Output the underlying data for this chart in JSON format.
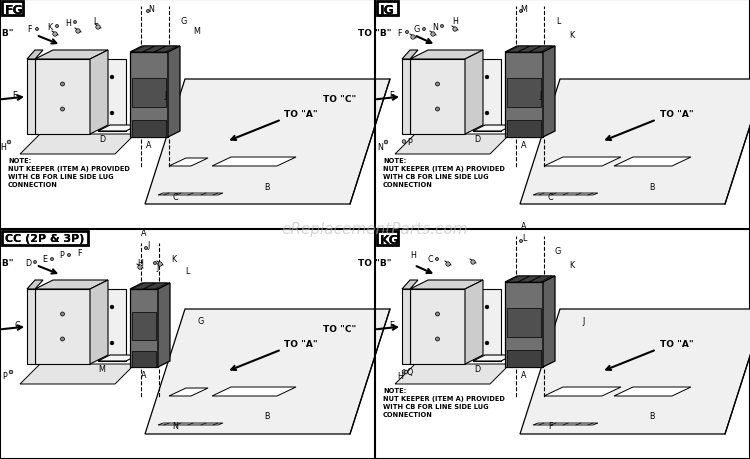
{
  "bg": "#ffffff",
  "line_color": "#000000",
  "watermark": "eReplacementParts.com",
  "wm_color": "#bbbbbb",
  "quadrant_labels": [
    "FG",
    "JG",
    "CC (2P & 3P)",
    "KG"
  ],
  "notes": {
    "FG": "NOTE:\nNUT KEEPER (ITEM A) PROVIDED\nWITH CB FOR LINE SIDE LUG\nCONNECTION",
    "JG": "NOTE:\nNUT KEEPER (ITEM A) PROVIDED\nWITH CB FOR LINE SIDE LUG\nCONNECTION",
    "CC": "",
    "KG": "NOTE:\nNUT KEEPER (ITEM A) PROVIDED\nWITH CB FOR LINE SIDE LUG\nCONNECTION"
  }
}
